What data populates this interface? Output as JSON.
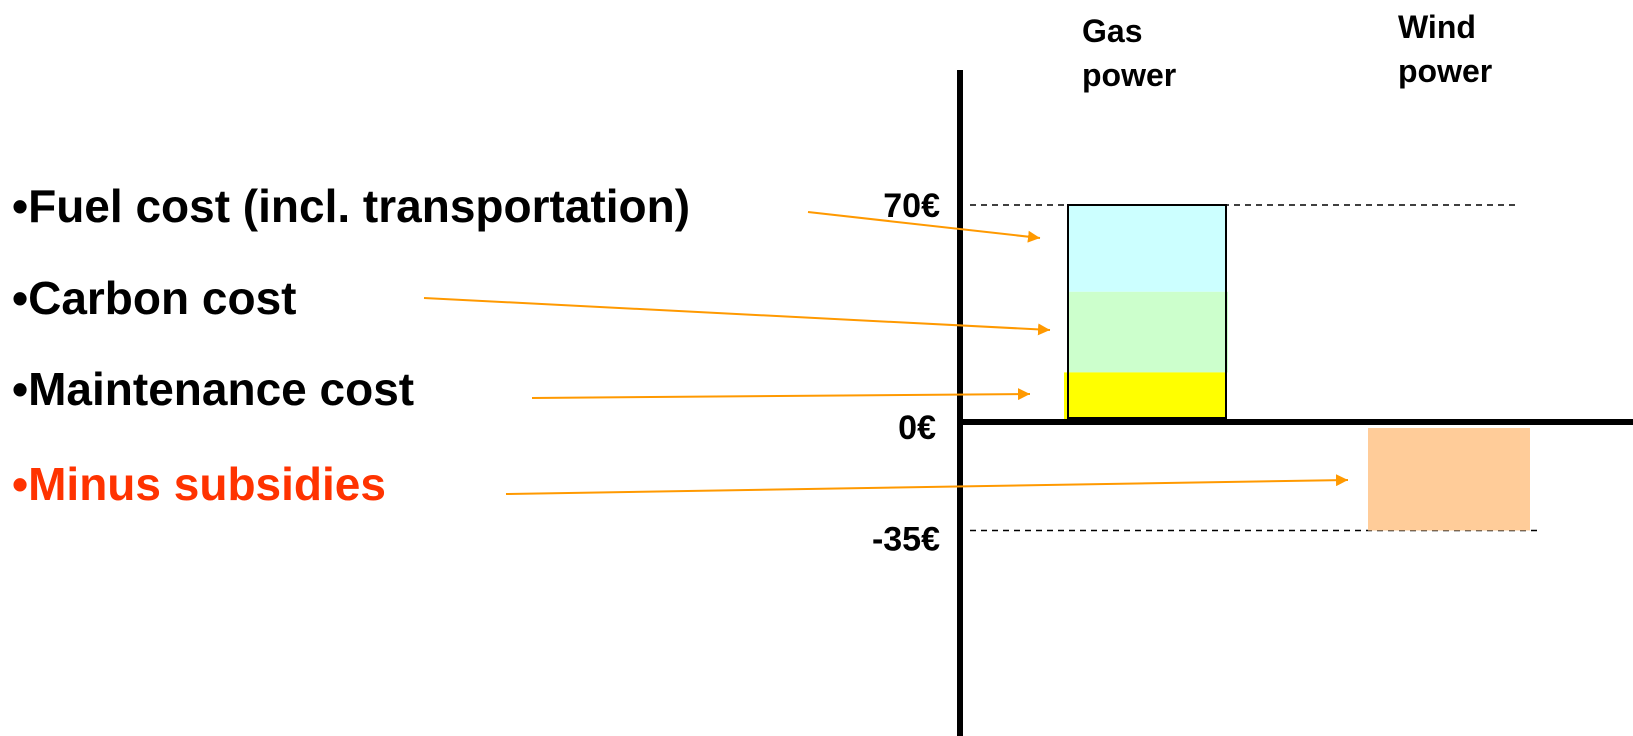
{
  "bullets": [
    {
      "text": "•Fuel cost (incl. transportation)",
      "color": "#000000"
    },
    {
      "text": "•Carbon cost",
      "color": "#000000"
    },
    {
      "text": "•Maintenance cost",
      "color": "#000000"
    },
    {
      "text": "•Minus subsidies",
      "color": "#ff3300"
    }
  ],
  "categories": [
    {
      "line1": "Gas",
      "line2": "power"
    },
    {
      "line1": "Wind",
      "line2": "power"
    }
  ],
  "ticks": [
    {
      "value": 70,
      "label": "70€"
    },
    {
      "value": 0,
      "label": "0€"
    },
    {
      "value": -35,
      "label": "-35€"
    }
  ],
  "colors": {
    "fuel": "#ccffff",
    "carbon": "#ccffcc",
    "maintenance": "#ffff00",
    "subsidy": "#ffcc99",
    "arrow": "#ff9900",
    "axis": "#000000"
  },
  "chart_data": {
    "type": "bar",
    "stacked": true,
    "categories": [
      "Gas power",
      "Wind power"
    ],
    "series": [
      {
        "name": "Maintenance cost",
        "values": [
          16,
          0
        ]
      },
      {
        "name": "Carbon cost",
        "values": [
          26,
          0
        ]
      },
      {
        "name": "Fuel cost (incl. transportation)",
        "values": [
          28,
          0
        ]
      },
      {
        "name": "Minus subsidies",
        "values": [
          0,
          -35
        ]
      }
    ],
    "ylim": [
      -100,
      115
    ],
    "reference_lines": [
      70,
      -35
    ],
    "grid": false
  }
}
